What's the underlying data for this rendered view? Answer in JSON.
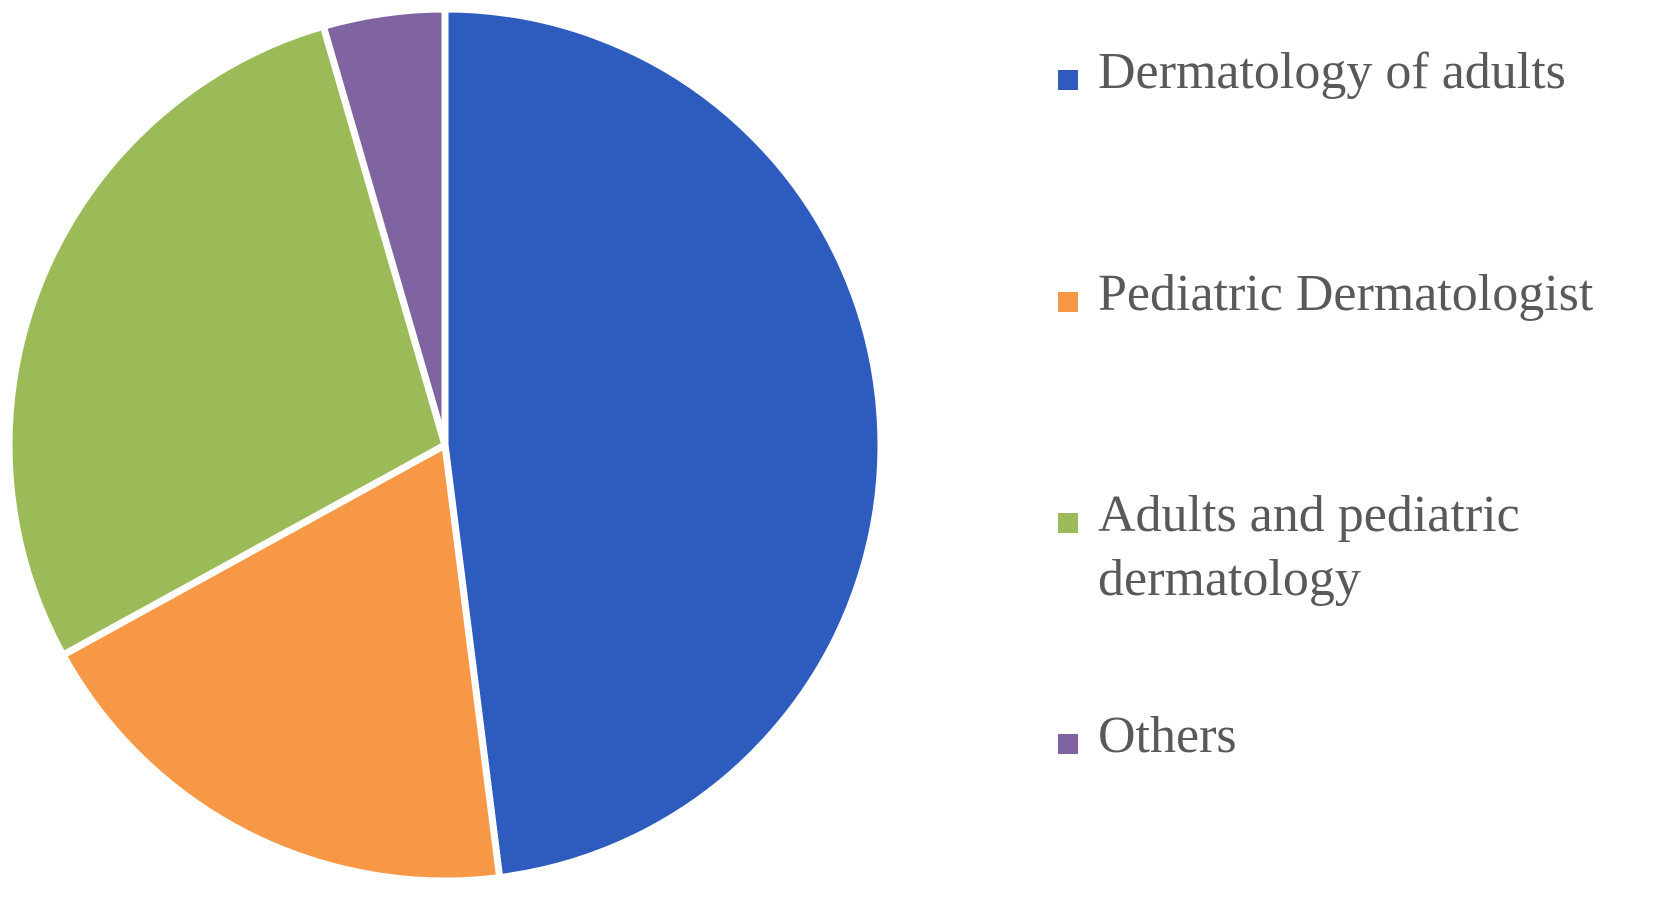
{
  "chart_data": {
    "type": "pie",
    "title": "",
    "categories": [
      "Dermatology of adults",
      "Pediatric Dermatologist",
      "Adults and pediatric dermatology",
      "Others"
    ],
    "values": [
      48,
      19,
      28.5,
      4.5
    ],
    "unit": "%",
    "colors": [
      "#2E5BBE",
      "#F79847",
      "#9BBB59",
      "#8064A2"
    ],
    "start_angle": "12 o'clock",
    "direction": "clockwise",
    "legend_position": "right",
    "data_labels": "none"
  },
  "legend": {
    "items": [
      {
        "label": "Dermatology of adults",
        "color": "#2E5BBE"
      },
      {
        "label": "Pediatric Dermatologist",
        "color": "#F79847"
      },
      {
        "label": "Adults and pediatric dermatology",
        "color": "#9BBB59"
      },
      {
        "label": "Others",
        "color": "#8064A2"
      }
    ]
  }
}
